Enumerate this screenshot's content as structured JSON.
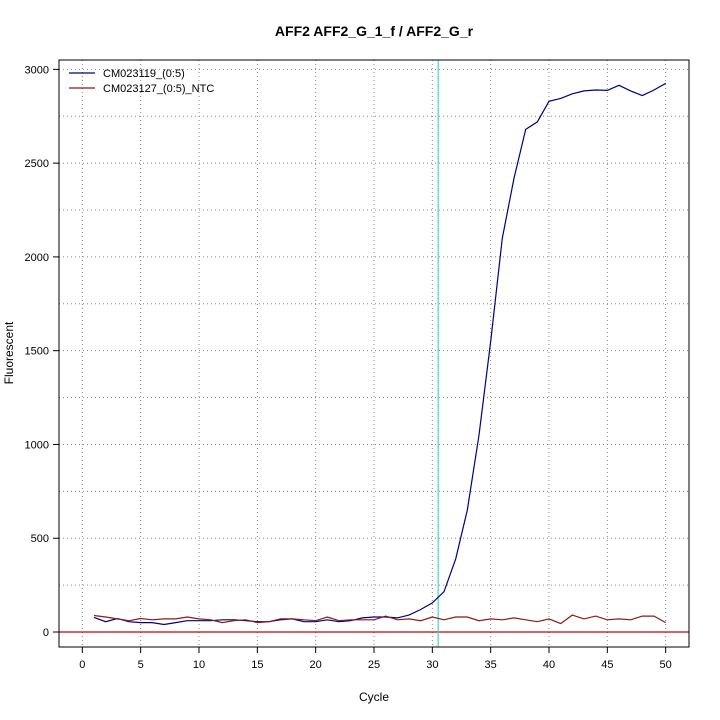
{
  "chart_data": {
    "type": "line",
    "title": "AFF2  AFF2_G_1_f / AFF2_G_r",
    "xlabel": "Cycle",
    "ylabel": "Fluorescent",
    "xlim": [
      -2,
      52
    ],
    "ylim": [
      -80,
      3050
    ],
    "x_ticks": [
      0,
      5,
      10,
      15,
      20,
      25,
      30,
      35,
      40,
      45,
      50
    ],
    "y_ticks": [
      0,
      500,
      1000,
      1500,
      2000,
      2500,
      3000
    ],
    "grid": true,
    "grid_x": [
      0,
      5,
      10,
      15,
      20,
      25,
      30,
      35,
      40,
      45,
      50
    ],
    "grid_y": [
      0,
      250,
      500,
      750,
      1000,
      1250,
      1500,
      1750,
      2000,
      2250,
      2500,
      2750,
      3000
    ],
    "threshold_cycle": 30.5,
    "threshold_color": "#3ed6d6",
    "baseline_value": 0,
    "baseline_color": "#cc0000",
    "legend_position": "top-left",
    "series": [
      {
        "name": "CM023119_(0:5)",
        "color": "#000080",
        "x": [
          1,
          2,
          3,
          4,
          5,
          6,
          7,
          8,
          9,
          10,
          11,
          12,
          13,
          14,
          15,
          16,
          17,
          18,
          19,
          20,
          21,
          22,
          23,
          24,
          25,
          26,
          27,
          28,
          29,
          30,
          31,
          32,
          33,
          34,
          35,
          36,
          37,
          38,
          39,
          40,
          41,
          42,
          43,
          44,
          45,
          46,
          47,
          48,
          49,
          50
        ],
        "y": [
          78,
          55,
          72,
          55,
          50,
          50,
          40,
          50,
          60,
          60,
          60,
          65,
          65,
          60,
          55,
          55,
          65,
          70,
          55,
          55,
          65,
          55,
          60,
          75,
          80,
          80,
          75,
          90,
          120,
          155,
          215,
          390,
          650,
          1050,
          1550,
          2100,
          2420,
          2680,
          2720,
          2830,
          2845,
          2870,
          2885,
          2890,
          2888,
          2915,
          2885,
          2860,
          2890,
          2925
        ]
      },
      {
        "name": "CM023127_(0:5)_NTC",
        "color": "#8b1a1a",
        "x": [
          1,
          2,
          3,
          4,
          5,
          6,
          7,
          8,
          9,
          10,
          11,
          12,
          13,
          14,
          15,
          16,
          17,
          18,
          19,
          20,
          21,
          22,
          23,
          24,
          25,
          26,
          27,
          28,
          29,
          30,
          31,
          32,
          33,
          34,
          35,
          36,
          37,
          38,
          39,
          40,
          41,
          42,
          43,
          44,
          45,
          46,
          47,
          48,
          49,
          50
        ],
        "y": [
          88,
          80,
          70,
          60,
          72,
          65,
          70,
          70,
          80,
          70,
          65,
          50,
          60,
          65,
          50,
          55,
          70,
          70,
          65,
          60,
          80,
          60,
          65,
          65,
          65,
          85,
          65,
          70,
          60,
          80,
          65,
          80,
          80,
          60,
          70,
          65,
          75,
          65,
          55,
          70,
          45,
          90,
          70,
          85,
          65,
          70,
          65,
          85,
          85,
          50
        ]
      }
    ]
  }
}
